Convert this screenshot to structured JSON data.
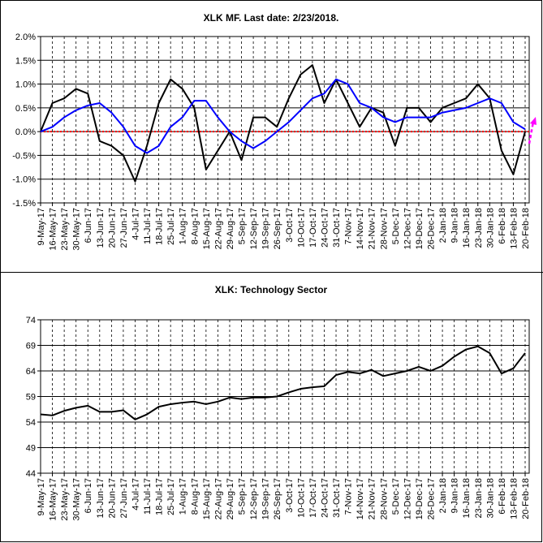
{
  "chart_data": [
    {
      "type": "line",
      "title": "XLK MF. Last date: 2/23/2018.",
      "categories": [
        "9-May-17",
        "16-May-17",
        "23-May-17",
        "30-May-17",
        "6-Jun-17",
        "13-Jun-17",
        "20-Jun-17",
        "27-Jun-17",
        "4-Jul-17",
        "11-Jul-17",
        "18-Jul-17",
        "25-Jul-17",
        "1-Aug-17",
        "8-Aug-17",
        "15-Aug-17",
        "22-Aug-17",
        "29-Aug-17",
        "5-Sep-17",
        "12-Sep-17",
        "19-Sep-17",
        "26-Sep-17",
        "3-Oct-17",
        "10-Oct-17",
        "17-Oct-17",
        "24-Oct-17",
        "31-Oct-17",
        "7-Nov-17",
        "14-Nov-17",
        "21-Nov-17",
        "28-Nov-17",
        "5-Dec-17",
        "12-Dec-17",
        "19-Dec-17",
        "26-Dec-17",
        "2-Jan-18",
        "9-Jan-18",
        "16-Jan-18",
        "23-Jan-18",
        "30-Jan-18",
        "6-Feb-18",
        "13-Feb-18",
        "20-Feb-18"
      ],
      "series": [
        {
          "color": "#000000",
          "values": [
            0.0,
            0.6,
            0.7,
            0.9,
            0.8,
            -0.2,
            -0.3,
            -0.5,
            -1.05,
            -0.3,
            0.6,
            1.1,
            0.9,
            0.5,
            -0.8,
            -0.4,
            0.0,
            -0.6,
            0.3,
            0.3,
            0.1,
            0.7,
            1.2,
            1.4,
            0.6,
            1.1,
            0.6,
            0.1,
            0.5,
            0.4,
            -0.3,
            0.5,
            0.5,
            0.2,
            0.5,
            0.6,
            0.7,
            1.0,
            0.7,
            -0.4,
            -0.9,
            0.0
          ]
        },
        {
          "color": "#0000ff",
          "values": [
            0.0,
            0.1,
            0.3,
            0.45,
            0.55,
            0.6,
            0.4,
            0.1,
            -0.3,
            -0.45,
            -0.3,
            0.1,
            0.3,
            0.65,
            0.65,
            0.3,
            0.0,
            -0.2,
            -0.35,
            -0.2,
            0.0,
            0.2,
            0.45,
            0.7,
            0.8,
            1.1,
            1.0,
            0.6,
            0.5,
            0.3,
            0.2,
            0.3,
            0.3,
            0.3,
            0.4,
            0.45,
            0.5,
            0.6,
            0.7,
            0.6,
            0.2,
            0.05
          ]
        }
      ],
      "reference_line": 0,
      "reference_color": "#ff0000",
      "ylim": [
        -1.5,
        2.0
      ],
      "yticks": [
        {
          "value": -1.5,
          "label": "-1.5%"
        },
        {
          "value": -1.0,
          "label": "-1.0%"
        },
        {
          "value": -0.5,
          "label": "-0.5%"
        },
        {
          "value": 0.0,
          "label": "0.0%"
        },
        {
          "value": 0.5,
          "label": "0.5%"
        },
        {
          "value": 1.0,
          "label": "1.0%"
        },
        {
          "value": 1.5,
          "label": "1.5%"
        },
        {
          "value": 2.0,
          "label": "2.0%"
        }
      ],
      "grid": true
    },
    {
      "type": "line",
      "title": "XLK: Technology Sector",
      "categories": [
        "9-May-17",
        "16-May-17",
        "23-May-17",
        "30-May-17",
        "6-Jun-17",
        "13-Jun-17",
        "20-Jun-17",
        "27-Jun-17",
        "4-Jul-17",
        "11-Jul-17",
        "18-Jul-17",
        "25-Jul-17",
        "1-Aug-17",
        "8-Aug-17",
        "15-Aug-17",
        "22-Aug-17",
        "29-Aug-17",
        "5-Sep-17",
        "12-Sep-17",
        "19-Sep-17",
        "26-Sep-17",
        "3-Oct-17",
        "10-Oct-17",
        "17-Oct-17",
        "24-Oct-17",
        "31-Oct-17",
        "7-Nov-17",
        "14-Nov-17",
        "21-Nov-17",
        "28-Nov-17",
        "5-Dec-17",
        "12-Dec-17",
        "19-Dec-17",
        "26-Dec-17",
        "2-Jan-18",
        "9-Jan-18",
        "16-Jan-18",
        "23-Jan-18",
        "30-Jan-18",
        "6-Feb-18",
        "13-Feb-18",
        "20-Feb-18"
      ],
      "series": [
        {
          "color": "#000000",
          "values": [
            55.5,
            55.3,
            56.2,
            56.8,
            57.2,
            56.0,
            56.0,
            56.3,
            54.5,
            55.5,
            57.0,
            57.5,
            57.8,
            58.0,
            57.5,
            58.0,
            58.8,
            58.5,
            58.8,
            58.8,
            59.0,
            59.8,
            60.5,
            60.8,
            61.0,
            63.2,
            63.8,
            63.5,
            64.2,
            63.0,
            63.5,
            64.0,
            64.8,
            64.0,
            65.0,
            66.8,
            68.2,
            68.8,
            67.5,
            63.5,
            64.5,
            67.5
          ]
        }
      ],
      "ylim": [
        44,
        74
      ],
      "yticks": [
        44,
        49,
        54,
        59,
        64,
        69,
        74
      ],
      "grid": true
    }
  ]
}
